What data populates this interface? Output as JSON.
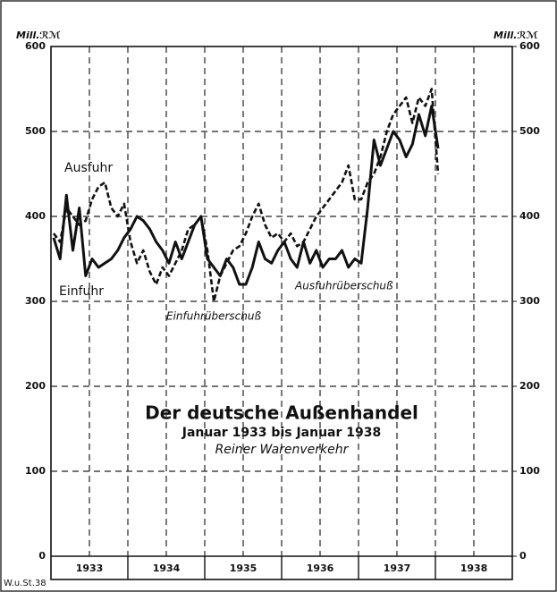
{
  "chart_data": {
    "type": "line",
    "title": "Der deutsche Außenhandel",
    "subtitle": "Januar 1933 bis Januar 1938",
    "note": "Reiner Warenverkehr",
    "y_axis_label": "Mill.ℛℳ",
    "y2_axis_label": "Mill.ℛℳ",
    "source": "W.u.St.38",
    "annotations": [
      "Ausfuhr",
      "Einfuhr",
      "Einfuhrüberschuß",
      "Ausfuhrüberschuß"
    ],
    "x_labels": [
      "1933",
      "1934",
      "1935",
      "1936",
      "1937",
      "1938"
    ],
    "series": [
      {
        "name": "Ausfuhr",
        "color": "#111111",
        "dash": true,
        "values": [
          380,
          370,
          410,
          400,
          390,
          395,
          420,
          435,
          440,
          410,
          400,
          415,
          370,
          345,
          360,
          335,
          320,
          340,
          330,
          345,
          360,
          385,
          390,
          400,
          360,
          300,
          330,
          345,
          360,
          365,
          380,
          400,
          415,
          390,
          375,
          380,
          370,
          380,
          365,
          370,
          385,
          400,
          410,
          420,
          430,
          440,
          460,
          420,
          420,
          440,
          450,
          470,
          500,
          520,
          530,
          540,
          510,
          540,
          530,
          550,
          450
        ]
      },
      {
        "name": "Einfuhr",
        "color": "#111111",
        "dash": false,
        "values": [
          375,
          350,
          425,
          360,
          410,
          330,
          350,
          340,
          345,
          350,
          360,
          375,
          385,
          400,
          395,
          385,
          370,
          360,
          345,
          370,
          350,
          370,
          390,
          400,
          350,
          340,
          330,
          350,
          340,
          320,
          320,
          340,
          370,
          350,
          345,
          360,
          370,
          350,
          340,
          370,
          345,
          360,
          340,
          350,
          350,
          360,
          340,
          350,
          345,
          410,
          490,
          460,
          480,
          500,
          490,
          470,
          485,
          520,
          495,
          530,
          480
        ]
      }
    ],
    "ylim": [
      0,
      600
    ],
    "yticks": [
      0,
      100,
      200,
      300,
      400,
      500,
      600
    ],
    "y2lim": [
      0,
      600
    ],
    "y2ticks": [
      0,
      100,
      200,
      300,
      400,
      500,
      600
    ],
    "grid": true
  }
}
